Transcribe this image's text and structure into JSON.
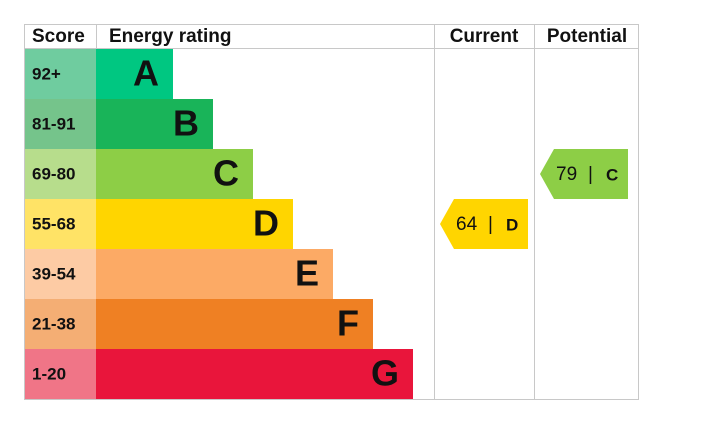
{
  "header": [
    "Score",
    "Energy rating",
    "Current",
    "Potential"
  ],
  "bands": [
    {
      "score": "92+",
      "letter": "A",
      "color": "#00c781",
      "score_color": "#6fcc9f"
    },
    {
      "score": "81-91",
      "letter": "B",
      "color": "#19b459",
      "score_color": "#75c48b"
    },
    {
      "score": "69-80",
      "letter": "C",
      "color": "#8dce46",
      "score_color": "#b7dd8c"
    },
    {
      "score": "55-68",
      "letter": "D",
      "color": "#ffd500",
      "score_color": "#ffe366"
    },
    {
      "score": "39-54",
      "letter": "E",
      "color": "#fcaa65",
      "score_color": "#fdcba4"
    },
    {
      "score": "21-38",
      "letter": "F",
      "color": "#ef8023",
      "score_color": "#f4ae74"
    },
    {
      "score": "1-20",
      "letter": "G",
      "color": "#e9153b",
      "score_color": "#f07587"
    }
  ],
  "current": {
    "value": 64,
    "band": "D"
  },
  "potential": {
    "value": 79,
    "band": "C"
  }
}
